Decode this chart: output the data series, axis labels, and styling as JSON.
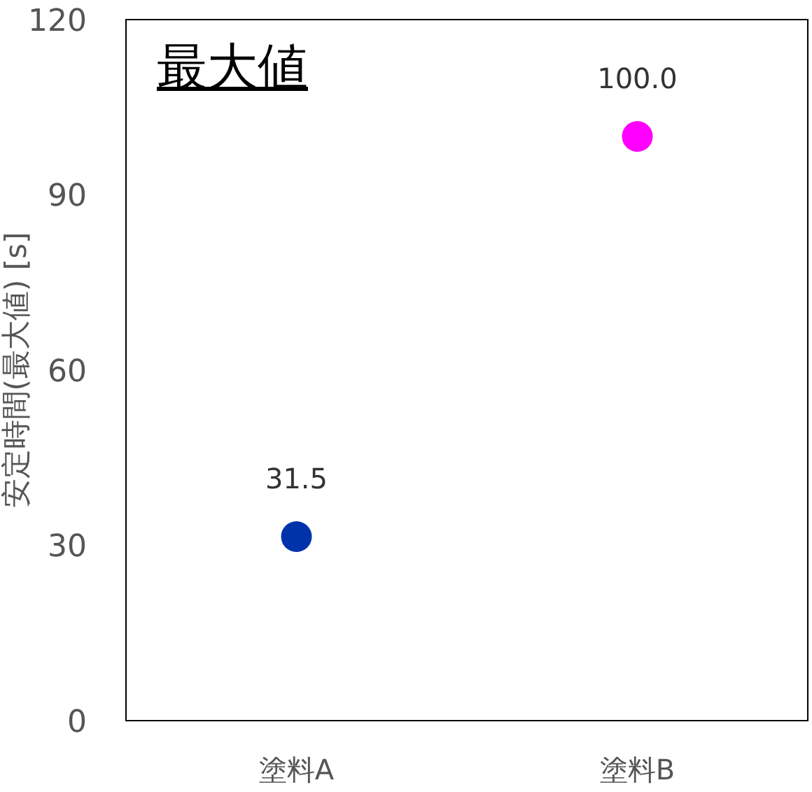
{
  "chart_data": {
    "type": "scatter",
    "title": "最大値",
    "ylabel": "安定時間(最大値) [s]",
    "categories": [
      "塗料A",
      "塗料B"
    ],
    "values": [
      31.5,
      100.0
    ],
    "colors": [
      "#0033aa",
      "#ff00ff"
    ],
    "value_labels": [
      "31.5",
      "100.0"
    ],
    "ylim": [
      0,
      120
    ],
    "yticks": [
      0,
      30,
      60,
      90,
      120
    ],
    "grid": false,
    "marker": "circle"
  }
}
